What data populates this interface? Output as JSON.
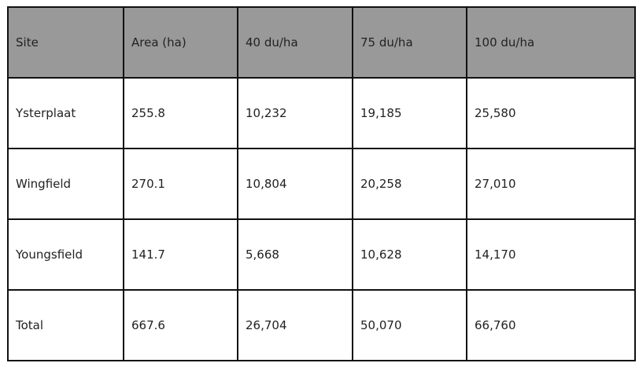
{
  "table": {
    "headers": [
      "Site",
      "Area (ha)",
      "40 du/ha",
      "75 du/ha",
      "100 du/ha"
    ],
    "rows": [
      [
        "Ysterplaat",
        "255.8",
        "10,232",
        "19,185",
        "25,580"
      ],
      [
        "Wingfield",
        "270.1",
        "10,804",
        "20,258",
        "27,010"
      ],
      [
        "Youngsfield",
        "141.7",
        "5,668",
        "10,628",
        "14,170"
      ],
      [
        "Total",
        "667.6",
        "26,704",
        "50,070",
        "66,760"
      ]
    ]
  },
  "colors": {
    "header_bg": "#999999",
    "border": "#111111"
  }
}
